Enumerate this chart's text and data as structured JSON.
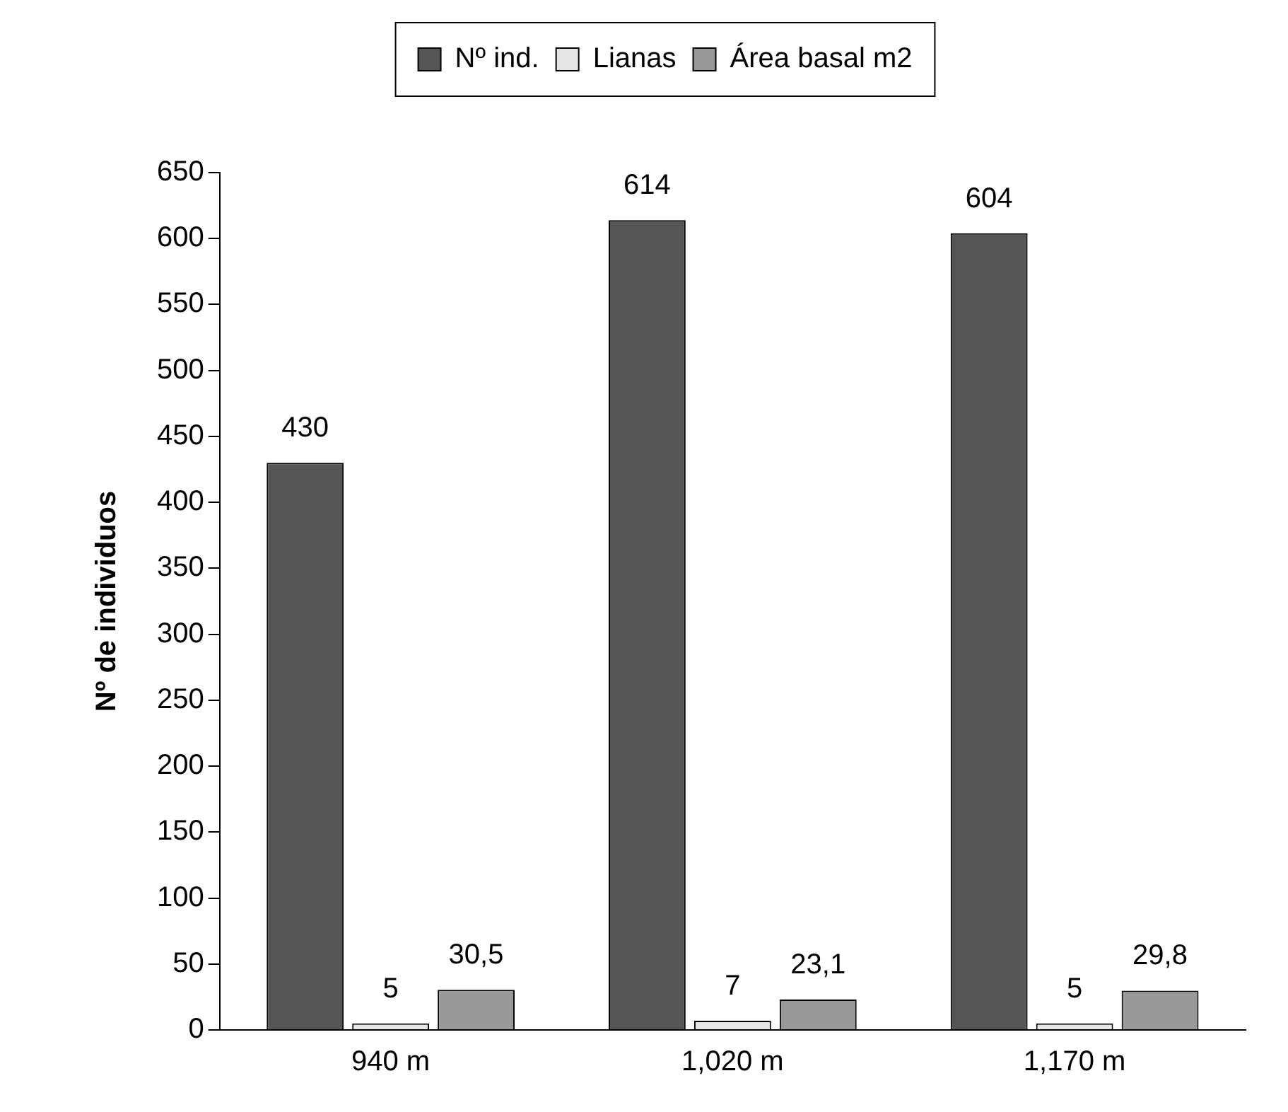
{
  "chart_data": {
    "type": "bar",
    "ylabel": "Nº de individuos",
    "categories": [
      "940 m",
      "1,020 m",
      "1,170 m"
    ],
    "series": [
      {
        "name": "Nº ind.",
        "color": "#555555",
        "values": [
          430,
          614,
          604
        ],
        "value_labels": [
          "430",
          "614",
          "604"
        ]
      },
      {
        "name": "Lianas",
        "color": "#e6e6e6",
        "values": [
          5,
          7,
          5
        ],
        "value_labels": [
          "5",
          "7",
          "5"
        ]
      },
      {
        "name": "Área basal m2",
        "color": "#999999",
        "values": [
          30.5,
          23.1,
          29.8
        ],
        "value_labels": [
          "30,5",
          "23,1",
          "29,8"
        ]
      }
    ],
    "ylim": [
      0,
      650
    ],
    "yticks": [
      0,
      50,
      100,
      150,
      200,
      250,
      300,
      350,
      400,
      450,
      500,
      550,
      600,
      650
    ],
    "grid": false,
    "legend": "top"
  }
}
